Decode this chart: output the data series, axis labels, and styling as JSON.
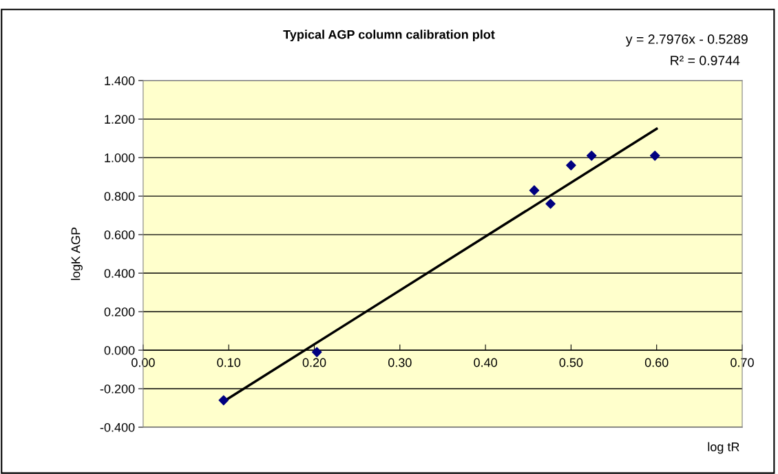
{
  "chart_data": {
    "type": "scatter",
    "title": "Typical AGP column calibration plot",
    "xlabel": "log tR",
    "ylabel": "logK AGP",
    "annotations": [
      "y = 2.7976x - 0.5289",
      "R² = 0.9744"
    ],
    "series": [
      {
        "color": "#000080",
        "marker": "diamond",
        "x": [
          0.094,
          0.203,
          0.457,
          0.476,
          0.5,
          0.524,
          0.598
        ],
        "values": [
          -0.26,
          -0.01,
          0.83,
          0.76,
          0.96,
          1.01,
          1.01
        ]
      },
      {
        "type": "line",
        "color": "#000000",
        "marker": "none",
        "x": [
          0.094,
          0.6
        ],
        "values": [
          -0.266,
          1.15
        ]
      }
    ],
    "xlim": [
      0,
      0.7
    ],
    "xticks": [
      {
        "value": 0,
        "label": "0.00"
      },
      {
        "value": 0.1,
        "label": "0.10"
      },
      {
        "value": 0.2,
        "label": "0.20"
      },
      {
        "value": 0.3,
        "label": "0.30"
      },
      {
        "value": 0.4,
        "label": "0.40"
      },
      {
        "value": 0.5,
        "label": "0.50"
      },
      {
        "value": 0.6,
        "label": "0.60"
      },
      {
        "value": 0.7,
        "label": "0.70"
      }
    ],
    "ylim": [
      -0.4,
      1.4
    ],
    "yticks": [
      {
        "value": -0.4,
        "label": "-0.400"
      },
      {
        "value": -0.2,
        "label": "-0.200"
      },
      {
        "value": 0,
        "label": "0.000"
      },
      {
        "value": 0.2,
        "label": "0.200"
      },
      {
        "value": 0.4,
        "label": "0.400"
      },
      {
        "value": 0.6,
        "label": "0.600"
      },
      {
        "value": 0.8,
        "label": "0.800"
      },
      {
        "value": 1.0,
        "label": "1.000"
      },
      {
        "value": 1.2,
        "label": "1.200"
      },
      {
        "value": 1.4,
        "label": "1.400"
      }
    ],
    "grid": "y"
  }
}
